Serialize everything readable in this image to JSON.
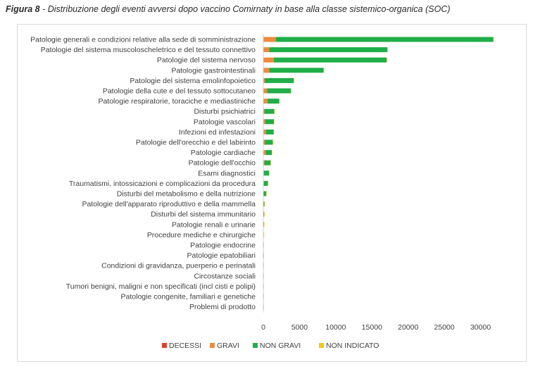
{
  "figure": {
    "number": "Figura 8",
    "title": " - Distribuzione degli eventi avversi dopo vaccino Comirnaty in base alla classe sistemico-organica (SOC)"
  },
  "chart_data": {
    "type": "bar",
    "orientation": "horizontal",
    "stacked": true,
    "categories": [
      "Patologie generali e condizioni relative alla sede di somministrazione",
      "Patologie del sistema muscoloscheletrico e del tessuto connettivo",
      "Patologie del sistema nervoso",
      "Patologie gastrointestinali",
      "Patologie del sistema emolinfopoietico",
      "Patologie della cute e del tessuto sottocutaneo",
      "Patologie respiratorie, toraciche e mediastiniche",
      "Disturbi psichiatrici",
      "Patologie vascolari",
      "Infezioni ed infestazioni",
      "Patologie dell'orecchio e del labirinto",
      "Patologie cardiache",
      "Patologie dell'occhio",
      "Esami diagnostici",
      "Traumatismi, intossicazioni e complicazioni da procedura",
      "Disturbi del metabolismo e della nutrizione",
      "Patologie dell'apparato riproduttivo e della mammella",
      "Disturbi del sistema immunitario",
      "Patologie renali e urinarie",
      "Procedure mediche e chirurgiche",
      "Patologie endocrine",
      "Patologie epatobiliari",
      "Condizioni di gravidanza, puerperio e perinatali",
      "Circostanze sociali",
      "Tumori benigni, maligni e non specificati (incl cisti e polipi)",
      "Patologie congenite, familiari e genetiche",
      "Problemi di prodotto"
    ],
    "series": [
      {
        "name": "DECESSI",
        "color": "#d9402b",
        "values": [
          50,
          20,
          30,
          15,
          5,
          5,
          40,
          5,
          10,
          10,
          2,
          20,
          2,
          5,
          5,
          2,
          0,
          2,
          2,
          0,
          0,
          2,
          0,
          0,
          0,
          0,
          0
        ]
      },
      {
        "name": "GRAVI",
        "color": "#ed8a3f",
        "values": [
          1700,
          800,
          1400,
          800,
          200,
          500,
          550,
          150,
          250,
          350,
          200,
          300,
          150,
          80,
          70,
          50,
          20,
          20,
          20,
          10,
          10,
          10,
          5,
          5,
          5,
          5,
          2
        ]
      },
      {
        "name": "NON GRAVI",
        "color": "#1fae48",
        "values": [
          30000,
          16300,
          15600,
          7500,
          4000,
          3300,
          1600,
          1350,
          1200,
          1050,
          1100,
          850,
          850,
          700,
          550,
          350,
          130,
          100,
          70,
          50,
          40,
          30,
          30,
          20,
          15,
          10,
          8
        ]
      },
      {
        "name": "NON INDICATO",
        "color": "#f5c518",
        "values": [
          60,
          30,
          30,
          20,
          10,
          10,
          10,
          5,
          5,
          5,
          5,
          5,
          5,
          5,
          5,
          2,
          2,
          2,
          2,
          2,
          0,
          0,
          0,
          0,
          0,
          0,
          0
        ]
      }
    ],
    "xlim": [
      0,
      35000
    ],
    "xticks": [
      "0",
      "5000",
      "10000",
      "15000",
      "20000",
      "25000",
      "30000"
    ],
    "xtick_values": [
      0,
      5000,
      10000,
      15000,
      20000,
      25000,
      30000
    ],
    "legend_position": "bottom",
    "grid": false
  }
}
